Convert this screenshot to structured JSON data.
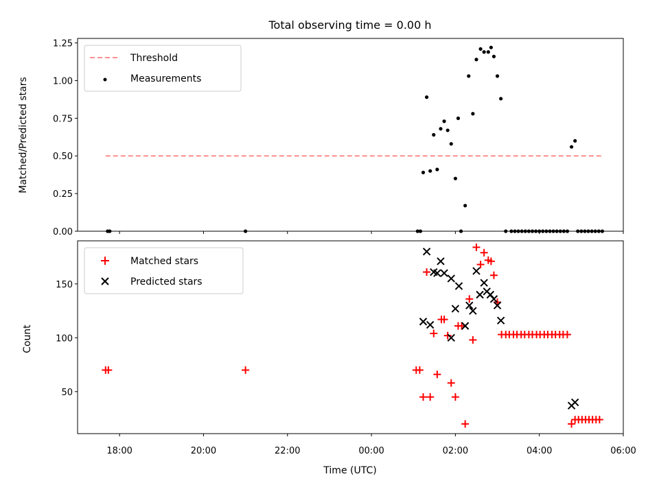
{
  "chart_data": [
    {
      "type": "scatter",
      "title": "Total observing time = 0.00 h",
      "xlabel": "",
      "ylabel": "Matched/Predicted stars",
      "xlim": [
        "17:00",
        "06:00"
      ],
      "ylim": [
        0,
        1.28
      ],
      "yticks": [
        "0.00",
        "0.25",
        "0.50",
        "0.75",
        "1.00",
        "1.25"
      ],
      "legend_position": "top-left",
      "threshold": {
        "name": "Threshold",
        "value": 0.5,
        "x_range": [
          "17:40",
          "05:30"
        ],
        "color": "#ff7f7f"
      },
      "series": [
        {
          "name": "Measurements",
          "color": "#000000",
          "points": [
            [
              "17:43",
              0
            ],
            [
              "17:46",
              0
            ],
            [
              "21:00",
              0
            ],
            [
              "01:06",
              0
            ],
            [
              "01:10",
              0
            ],
            [
              "01:14",
              0.39
            ],
            [
              "01:19",
              0.89
            ],
            [
              "01:24",
              0.4
            ],
            [
              "01:29",
              0.64
            ],
            [
              "01:34",
              0.41
            ],
            [
              "01:39",
              0.68
            ],
            [
              "01:44",
              0.73
            ],
            [
              "01:49",
              0.67
            ],
            [
              "01:54",
              0.58
            ],
            [
              "02:00",
              0.35
            ],
            [
              "02:04",
              0.75
            ],
            [
              "02:08",
              0
            ],
            [
              "02:14",
              0.17
            ],
            [
              "02:19",
              1.03
            ],
            [
              "02:25",
              0.78
            ],
            [
              "02:30",
              1.14
            ],
            [
              "02:36",
              1.21
            ],
            [
              "02:41",
              1.19
            ],
            [
              "02:47",
              1.19
            ],
            [
              "02:51",
              1.22
            ],
            [
              "02:55",
              1.16
            ],
            [
              "03:00",
              1.03
            ],
            [
              "03:05",
              0.88
            ],
            [
              "03:12",
              0
            ],
            [
              "03:20",
              0
            ],
            [
              "03:25",
              0
            ],
            [
              "03:30",
              0
            ],
            [
              "03:35",
              0
            ],
            [
              "03:40",
              0
            ],
            [
              "03:45",
              0
            ],
            [
              "03:50",
              0
            ],
            [
              "03:55",
              0
            ],
            [
              "04:00",
              0
            ],
            [
              "04:05",
              0
            ],
            [
              "04:10",
              0
            ],
            [
              "04:15",
              0
            ],
            [
              "04:20",
              0
            ],
            [
              "04:25",
              0
            ],
            [
              "04:30",
              0
            ],
            [
              "04:35",
              0
            ],
            [
              "04:40",
              0
            ],
            [
              "04:46",
              0.56
            ],
            [
              "04:51",
              0.6
            ],
            [
              "04:55",
              0
            ],
            [
              "05:00",
              0
            ],
            [
              "05:05",
              0
            ],
            [
              "05:10",
              0
            ],
            [
              "05:15",
              0
            ],
            [
              "05:20",
              0
            ],
            [
              "05:25",
              0
            ],
            [
              "05:30",
              0
            ]
          ]
        }
      ]
    },
    {
      "type": "scatter",
      "title": "",
      "xlabel": "Time (UTC)",
      "ylabel": "Count",
      "xlim": [
        "17:00",
        "06:00"
      ],
      "ylim": [
        11,
        190
      ],
      "yticks": [
        "50",
        "100",
        "150"
      ],
      "xticks": [
        "18:00",
        "20:00",
        "22:00",
        "00:00",
        "02:00",
        "04:00",
        "06:00"
      ],
      "legend_position": "top-left",
      "series": [
        {
          "name": "Matched stars",
          "color": "#ff0000",
          "marker": "plus",
          "points": [
            [
              "17:40",
              70
            ],
            [
              "17:44",
              70
            ],
            [
              "21:00",
              70
            ],
            [
              "01:04",
              70
            ],
            [
              "01:09",
              70
            ],
            [
              "01:14",
              45
            ],
            [
              "01:19",
              161
            ],
            [
              "01:24",
              45
            ],
            [
              "01:29",
              104
            ],
            [
              "01:34",
              66
            ],
            [
              "01:40",
              117
            ],
            [
              "01:44",
              117
            ],
            [
              "01:49",
              102
            ],
            [
              "01:54",
              58
            ],
            [
              "02:00",
              45
            ],
            [
              "02:04",
              111
            ],
            [
              "02:09",
              111
            ],
            [
              "02:14",
              20
            ],
            [
              "02:20",
              136
            ],
            [
              "02:25",
              98
            ],
            [
              "02:30",
              184
            ],
            [
              "02:36",
              168
            ],
            [
              "02:41",
              179
            ],
            [
              "02:47",
              172
            ],
            [
              "02:51",
              171
            ],
            [
              "02:55",
              158
            ],
            [
              "03:00",
              133
            ],
            [
              "03:06",
              103
            ],
            [
              "03:12",
              103
            ],
            [
              "03:17",
              103
            ],
            [
              "03:23",
              103
            ],
            [
              "03:28",
              103
            ],
            [
              "03:34",
              103
            ],
            [
              "03:39",
              103
            ],
            [
              "03:45",
              103
            ],
            [
              "03:50",
              103
            ],
            [
              "03:56",
              103
            ],
            [
              "04:01",
              103
            ],
            [
              "04:07",
              103
            ],
            [
              "04:12",
              103
            ],
            [
              "04:18",
              103
            ],
            [
              "04:23",
              103
            ],
            [
              "04:29",
              103
            ],
            [
              "04:34",
              103
            ],
            [
              "04:40",
              103
            ],
            [
              "04:46",
              20
            ],
            [
              "04:51",
              24
            ],
            [
              "04:56",
              24
            ],
            [
              "05:01",
              24
            ],
            [
              "05:06",
              24
            ],
            [
              "05:11",
              24
            ],
            [
              "05:16",
              24
            ],
            [
              "05:21",
              24
            ],
            [
              "05:26",
              24
            ]
          ]
        },
        {
          "name": "Predicted stars",
          "color": "#000000",
          "marker": "x",
          "points": [
            [
              "01:14",
              115
            ],
            [
              "01:19",
              180
            ],
            [
              "01:24",
              112
            ],
            [
              "01:29",
              161
            ],
            [
              "01:34",
              160
            ],
            [
              "01:39",
              171
            ],
            [
              "01:44",
              160
            ],
            [
              "01:54",
              100
            ],
            [
              "01:54",
              155
            ],
            [
              "02:00",
              127
            ],
            [
              "02:05",
              148
            ],
            [
              "02:14",
              111
            ],
            [
              "02:20",
              130
            ],
            [
              "02:25",
              125
            ],
            [
              "02:30",
              162
            ],
            [
              "02:35",
              140
            ],
            [
              "02:41",
              151
            ],
            [
              "02:45",
              143
            ],
            [
              "02:50",
              140
            ],
            [
              "02:55",
              136
            ],
            [
              "03:00",
              130
            ],
            [
              "03:05",
              116
            ],
            [
              "04:46",
              37
            ],
            [
              "04:51",
              40
            ]
          ]
        }
      ]
    }
  ]
}
